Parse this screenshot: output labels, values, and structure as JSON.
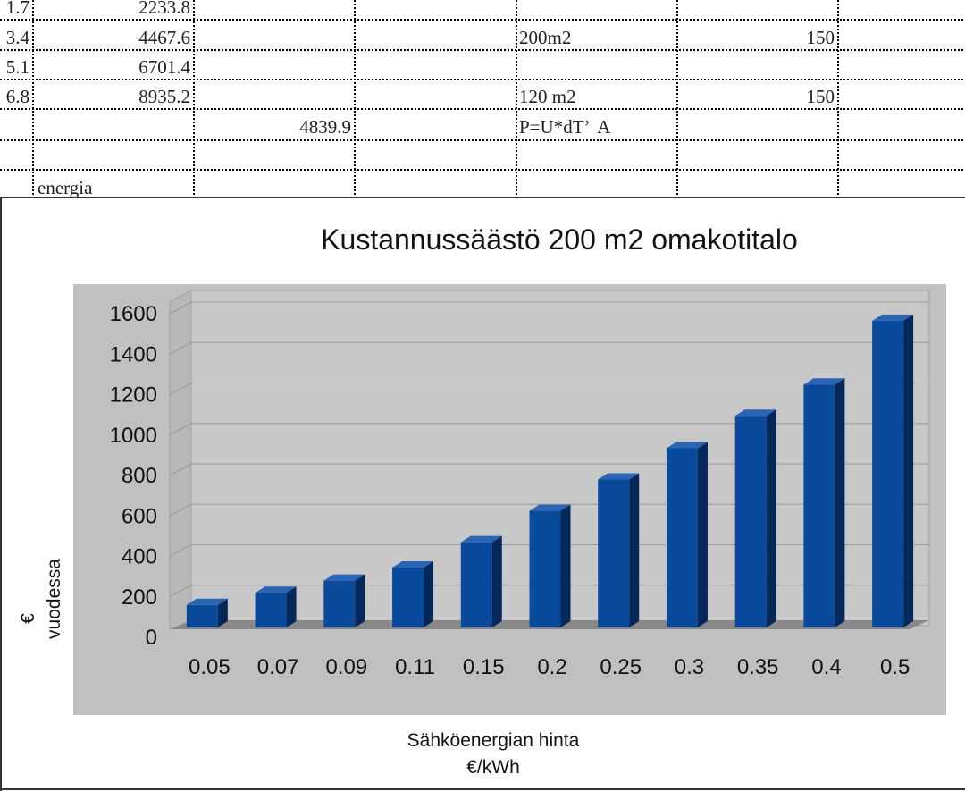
{
  "sheet": {
    "rows": [
      {
        "a": "1.7",
        "b": "2233.8",
        "c": "",
        "d": "",
        "e": ""
      },
      {
        "a": "3.4",
        "b": "4467.6",
        "c": "",
        "d": "200m2",
        "e": "150"
      },
      {
        "a": "5.1",
        "b": "6701.4",
        "c": "",
        "d": "",
        "e": ""
      },
      {
        "a": "6.8",
        "b": "8935.2",
        "c": "",
        "d": "120 m2",
        "e": "150"
      },
      {
        "a": "",
        "b": "",
        "c": "4839.9",
        "d": "P=U*dT’  A",
        "e": ""
      },
      {
        "a": "",
        "b": "",
        "c": "",
        "d": "",
        "e": ""
      },
      {
        "a": "",
        "b": "energia",
        "c": "",
        "d": "",
        "e": ""
      }
    ]
  },
  "chart_data": {
    "type": "bar",
    "title": "Kustannussäästö 200 m2 omakotitalo",
    "xlabel": [
      "Sähköenergian hinta",
      "€/kWh"
    ],
    "ylabel": [
      "€",
      "vuodessa"
    ],
    "categories": [
      "0.05",
      "0.07",
      "0.09",
      "0.11",
      "0.15",
      "0.2",
      "0.25",
      "0.3",
      "0.35",
      "0.4",
      "0.5"
    ],
    "values": [
      160,
      220,
      280,
      345,
      470,
      625,
      780,
      935,
      1095,
      1250,
      1565
    ],
    "ylim": [
      0,
      1600
    ],
    "yticks": [
      "0",
      "200",
      "400",
      "600",
      "800",
      "1000",
      "1200",
      "1400",
      "1600"
    ],
    "grid": true,
    "legend": "none",
    "colors": {
      "bar": "#0a4a9a",
      "bar_side": "#05285a",
      "bar_top": "#2a64b4",
      "plot_bg": "#c0c0c0",
      "wall": "#c8c8c8",
      "floor": "#888888",
      "grid": "#9a9a9a"
    }
  }
}
